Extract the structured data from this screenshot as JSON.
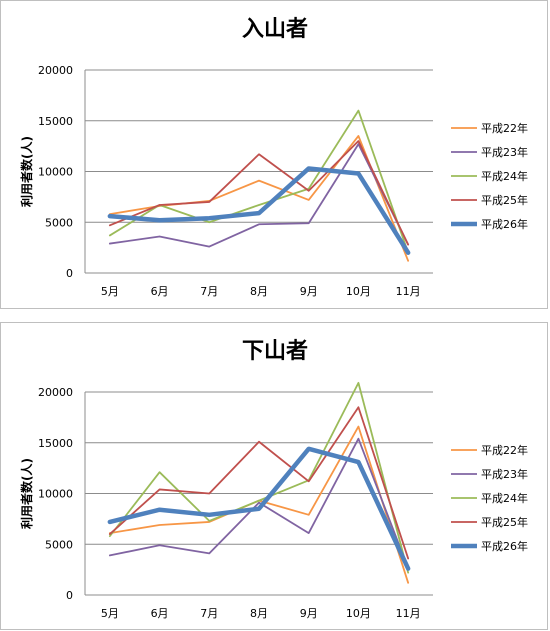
{
  "chart_data": [
    {
      "type": "line",
      "title": "入山者",
      "ylabel": "利用者数(人)",
      "categories": [
        "5月",
        "6月",
        "7月",
        "8月",
        "9月",
        "10月",
        "11月"
      ],
      "ylim": [
        0,
        20000
      ],
      "yticks": [
        0,
        5000,
        10000,
        15000,
        20000
      ],
      "grid": true,
      "legend": "right",
      "series": [
        {
          "name": "平成22年",
          "color": "#f79646",
          "values": [
            5800,
            6600,
            7100,
            9100,
            7200,
            13500,
            1200
          ]
        },
        {
          "name": "平成23年",
          "color": "#8064a2",
          "values": [
            2900,
            3600,
            2600,
            4800,
            4900,
            12700,
            2800
          ]
        },
        {
          "name": "平成24年",
          "color": "#9bbb59",
          "values": [
            3700,
            6700,
            5000,
            6700,
            8300,
            16000,
            2000
          ]
        },
        {
          "name": "平成25年",
          "color": "#c0504d",
          "values": [
            4700,
            6700,
            7000,
            11700,
            8100,
            13000,
            2800
          ]
        },
        {
          "name": "平成26年",
          "color": "#4f81bd",
          "values": [
            5600,
            5200,
            5400,
            5900,
            10300,
            9800,
            2000
          ]
        }
      ]
    },
    {
      "type": "line",
      "title": "下山者",
      "ylabel": "利用者数(人)",
      "categories": [
        "5月",
        "6月",
        "7月",
        "8月",
        "9月",
        "10月",
        "11月"
      ],
      "ylim": [
        0,
        20000
      ],
      "yticks": [
        0,
        5000,
        10000,
        15000,
        20000
      ],
      "grid": true,
      "legend": "right",
      "series": [
        {
          "name": "平成22年",
          "color": "#f79646",
          "values": [
            6100,
            6900,
            7200,
            9300,
            7900,
            16600,
            1200
          ]
        },
        {
          "name": "平成23年",
          "color": "#8064a2",
          "values": [
            3900,
            4900,
            4100,
            9100,
            6100,
            15400,
            2600
          ]
        },
        {
          "name": "平成24年",
          "color": "#9bbb59",
          "values": [
            5800,
            12100,
            7300,
            9300,
            11300,
            20900,
            2200
          ]
        },
        {
          "name": "平成25年",
          "color": "#c0504d",
          "values": [
            6000,
            10400,
            10000,
            15100,
            11200,
            18500,
            3600
          ]
        },
        {
          "name": "平成26年",
          "color": "#4f81bd",
          "values": [
            7200,
            8400,
            7900,
            8500,
            14400,
            13100,
            2600
          ]
        }
      ]
    }
  ]
}
